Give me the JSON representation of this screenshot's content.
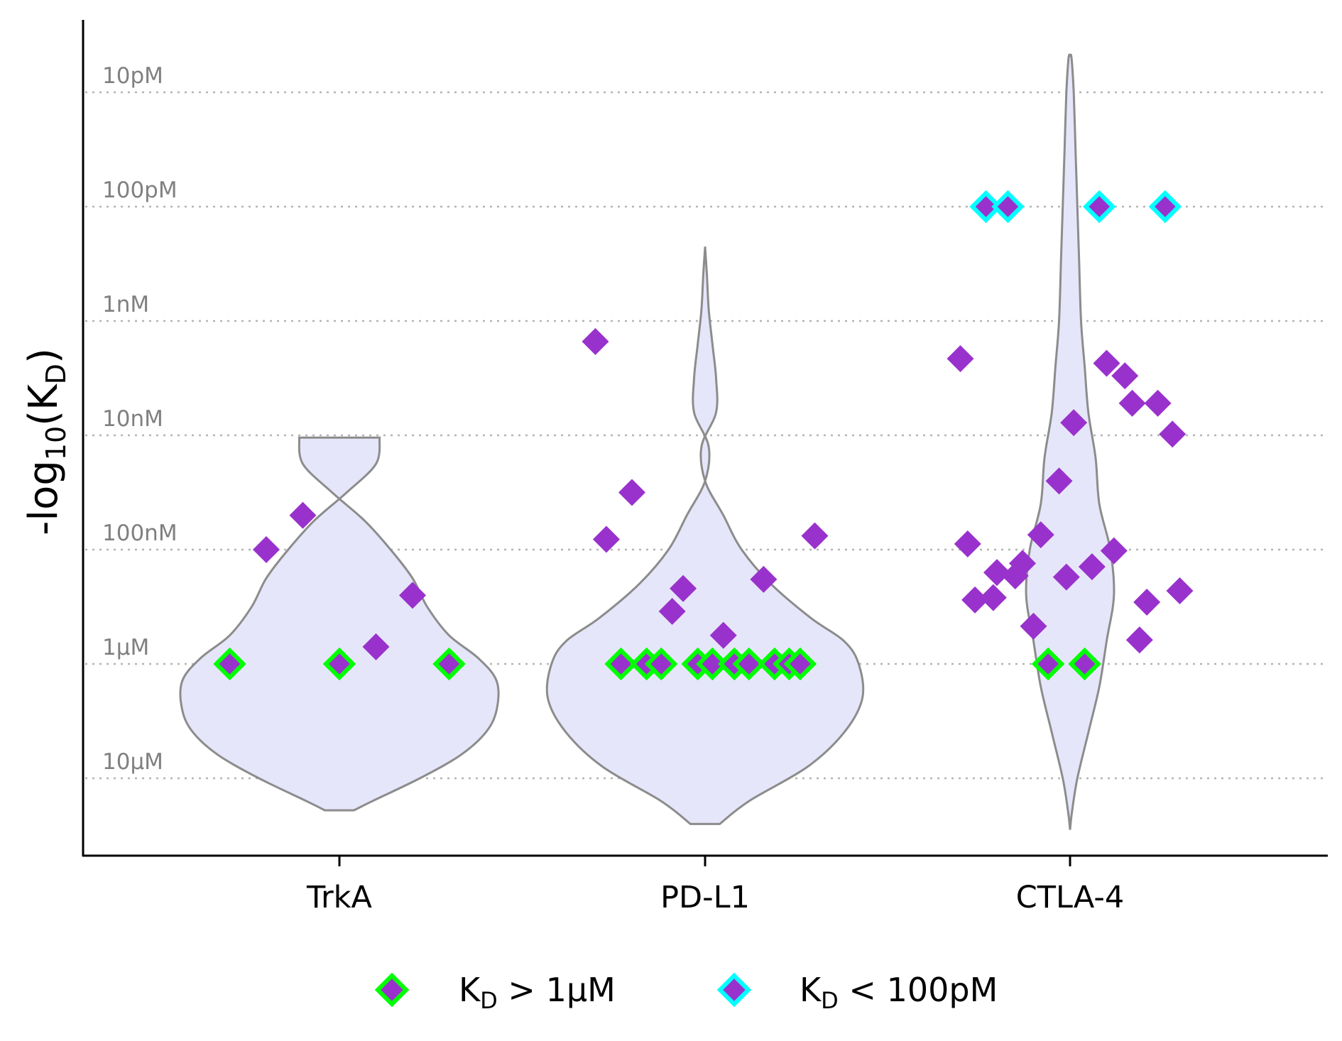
{
  "chart_data": {
    "type": "scatter",
    "subtype": "violin-with-jittered-points",
    "ylabel": {
      "prefix": "-log",
      "sub": "10",
      "open": "(K",
      "sub2": "D",
      "close": ")"
    },
    "categories": [
      "TrkA",
      "PD-L1",
      "CTLA-4"
    ],
    "ylim_kd_molar_log10": [
      -5.65,
      1.65
    ],
    "reference_lines": [
      {
        "label": "10pM",
        "log10_kd": -11
      },
      {
        "label": "100pM",
        "log10_kd": -10
      },
      {
        "label": "1nM",
        "log10_kd": -9
      },
      {
        "label": "10nM",
        "log10_kd": -8
      },
      {
        "label": "100nM",
        "log10_kd": -7
      },
      {
        "label": "1µM",
        "log10_kd": -6
      },
      {
        "label": "10µM",
        "log10_kd": -5
      }
    ],
    "grid": "horizontal dotted at reference lines",
    "legend_position": "bottom-center",
    "legend": [
      {
        "k": "K",
        "sub": "D",
        "rest": " > 1µM",
        "edge": "#00ff00"
      },
      {
        "k": "K",
        "sub": "D",
        "rest": " < 100pM",
        "edge": "#00ffff"
      }
    ],
    "colors": {
      "point": "#9932cc",
      "violin_fill": "#e6e6fa",
      "violin_edge": "#8c8c8c",
      "weak_edge": "#00ff00",
      "strong_edge": "#00ffff",
      "grid": "#b4b4b4"
    },
    "series": [
      {
        "category": "TrkA",
        "points": [
          {
            "jitter": -0.3,
            "y": 6.0,
            "flag": "weak"
          },
          {
            "jitter": 0.0,
            "y": 6.0,
            "flag": "weak"
          },
          {
            "jitter": 0.3,
            "y": 6.0,
            "flag": "weak"
          },
          {
            "jitter": -0.2,
            "y": 7.0
          },
          {
            "jitter": -0.1,
            "y": 7.3
          },
          {
            "jitter": 0.2,
            "y": 6.6
          },
          {
            "jitter": 0.1,
            "y": 6.15
          }
        ]
      },
      {
        "category": "PD-L1",
        "points": [
          {
            "jitter": -0.3,
            "y": 8.82
          },
          {
            "jitter": -0.2,
            "y": 7.5
          },
          {
            "jitter": -0.27,
            "y": 7.09
          },
          {
            "jitter": 0.3,
            "y": 7.12
          },
          {
            "jitter": 0.16,
            "y": 6.74
          },
          {
            "jitter": -0.06,
            "y": 6.66
          },
          {
            "jitter": -0.09,
            "y": 6.46
          },
          {
            "jitter": 0.05,
            "y": 6.25
          },
          {
            "jitter": -0.23,
            "y": 6.0,
            "flag": "weak"
          },
          {
            "jitter": -0.16,
            "y": 6.0,
            "flag": "weak"
          },
          {
            "jitter": -0.12,
            "y": 6.0,
            "flag": "weak"
          },
          {
            "jitter": -0.02,
            "y": 6.0,
            "flag": "weak"
          },
          {
            "jitter": 0.02,
            "y": 6.0,
            "flag": "weak"
          },
          {
            "jitter": 0.08,
            "y": 6.0,
            "flag": "weak"
          },
          {
            "jitter": 0.12,
            "y": 6.0,
            "flag": "weak"
          },
          {
            "jitter": 0.19,
            "y": 6.0,
            "flag": "weak"
          },
          {
            "jitter": 0.23,
            "y": 6.0,
            "flag": "weak"
          },
          {
            "jitter": 0.26,
            "y": 6.0,
            "flag": "weak"
          }
        ]
      },
      {
        "category": "CTLA-4",
        "points": [
          {
            "jitter": -0.23,
            "y": 10.0,
            "flag": "strong"
          },
          {
            "jitter": -0.17,
            "y": 10.0,
            "flag": "strong"
          },
          {
            "jitter": 0.08,
            "y": 10.0,
            "flag": "strong"
          },
          {
            "jitter": 0.26,
            "y": 10.0,
            "flag": "strong"
          },
          {
            "jitter": -0.3,
            "y": 8.67
          },
          {
            "jitter": 0.1,
            "y": 8.63
          },
          {
            "jitter": 0.15,
            "y": 8.52
          },
          {
            "jitter": 0.17,
            "y": 8.28
          },
          {
            "jitter": 0.24,
            "y": 8.28
          },
          {
            "jitter": 0.01,
            "y": 8.11
          },
          {
            "jitter": 0.28,
            "y": 8.01
          },
          {
            "jitter": -0.03,
            "y": 7.6
          },
          {
            "jitter": -0.08,
            "y": 7.13
          },
          {
            "jitter": -0.28,
            "y": 7.05
          },
          {
            "jitter": 0.12,
            "y": 6.99
          },
          {
            "jitter": -0.13,
            "y": 6.88
          },
          {
            "jitter": -0.2,
            "y": 6.8
          },
          {
            "jitter": -0.15,
            "y": 6.77
          },
          {
            "jitter": 0.06,
            "y": 6.85
          },
          {
            "jitter": -0.01,
            "y": 6.76
          },
          {
            "jitter": 0.3,
            "y": 6.64
          },
          {
            "jitter": -0.26,
            "y": 6.56
          },
          {
            "jitter": -0.21,
            "y": 6.58
          },
          {
            "jitter": 0.21,
            "y": 6.54
          },
          {
            "jitter": -0.1,
            "y": 6.33
          },
          {
            "jitter": 0.19,
            "y": 6.21
          },
          {
            "jitter": -0.06,
            "y": 6.0,
            "flag": "weak"
          },
          {
            "jitter": 0.04,
            "y": 6.0,
            "flag": "weak"
          }
        ]
      }
    ],
    "violins": [
      {
        "category": "TrkA",
        "profile": [
          [
            4.72,
            0.04
          ],
          [
            4.8,
            0.09
          ],
          [
            5.0,
            0.22
          ],
          [
            5.2,
            0.33
          ],
          [
            5.4,
            0.4
          ],
          [
            5.6,
            0.43
          ],
          [
            5.85,
            0.43
          ],
          [
            6.05,
            0.38
          ],
          [
            6.25,
            0.3
          ],
          [
            6.5,
            0.24
          ],
          [
            6.75,
            0.2
          ],
          [
            7.0,
            0.14
          ],
          [
            7.25,
            0.07
          ],
          [
            7.5,
            -0.02
          ],
          [
            7.75,
            -0.1
          ],
          [
            7.98,
            -0.11
          ]
        ]
      },
      {
        "category": "PD-L1",
        "profile": [
          [
            4.6,
            0.04
          ],
          [
            4.8,
            0.12
          ],
          [
            5.1,
            0.28
          ],
          [
            5.4,
            0.38
          ],
          [
            5.7,
            0.43
          ],
          [
            6.0,
            0.42
          ],
          [
            6.2,
            0.38
          ],
          [
            6.4,
            0.29
          ],
          [
            6.7,
            0.18
          ],
          [
            7.0,
            0.1
          ],
          [
            7.3,
            0.05
          ],
          [
            7.6,
            0.0
          ],
          [
            7.9,
            -0.01
          ],
          [
            8.2,
            0.03
          ],
          [
            8.5,
            0.03
          ],
          [
            8.8,
            0.02
          ],
          [
            9.1,
            0.01
          ],
          [
            9.4,
            0.005
          ],
          [
            9.65,
            0.0
          ]
        ]
      },
      {
        "category": "CTLA-4",
        "profile": [
          [
            4.55,
            0.0
          ],
          [
            4.7,
            0.005
          ],
          [
            5.0,
            0.02
          ],
          [
            5.4,
            0.05
          ],
          [
            5.8,
            0.08
          ],
          [
            6.2,
            0.1
          ],
          [
            6.6,
            0.12
          ],
          [
            7.0,
            0.11
          ],
          [
            7.4,
            0.08
          ],
          [
            7.8,
            0.07
          ],
          [
            8.2,
            0.05
          ],
          [
            8.6,
            0.04
          ],
          [
            9.0,
            0.03
          ],
          [
            9.5,
            0.025
          ],
          [
            10.0,
            0.02
          ],
          [
            10.5,
            0.015
          ],
          [
            11.0,
            0.01
          ],
          [
            11.3,
            0.004
          ],
          [
            11.32,
            0.0
          ]
        ]
      }
    ]
  }
}
